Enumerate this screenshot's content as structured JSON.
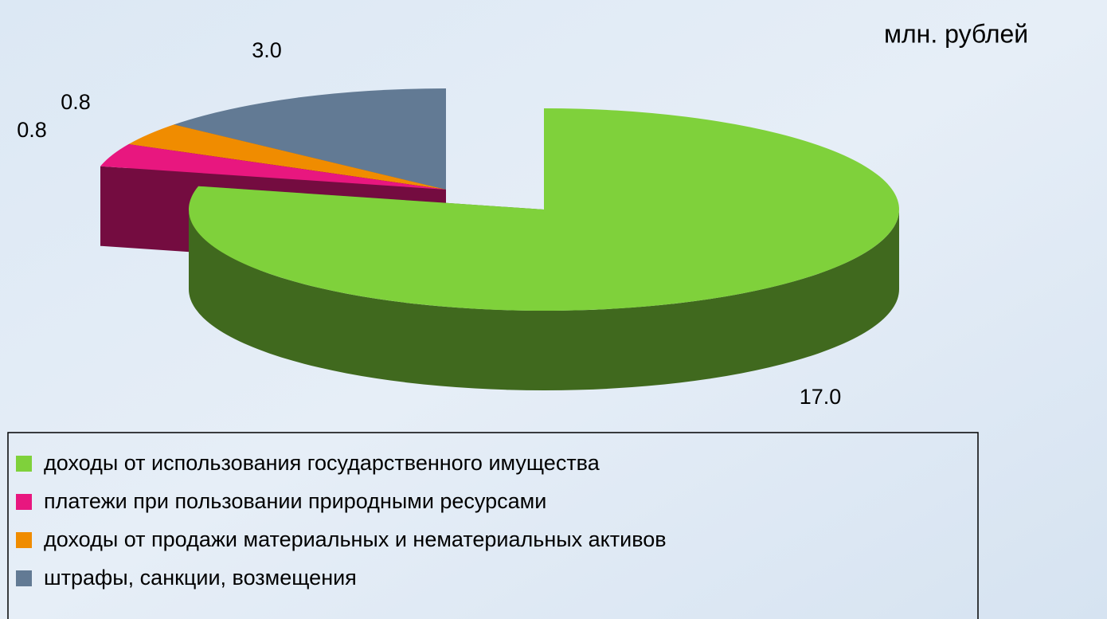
{
  "chart_data": {
    "type": "pie3d",
    "unit_label": "млн. рублей",
    "categories": [
      "доходы от использования государственного имущества",
      "платежи при пользовании природными ресурсами",
      "доходы от продажи материальных и нематериальных активов",
      "штрафы, санкции, возмещения"
    ],
    "values": [
      17.0,
      0.8,
      0.8,
      3.0
    ],
    "value_labels": [
      "17.0",
      "0.8",
      "0.8",
      "3.0"
    ],
    "colors": [
      "#7fd13b",
      "#e8177f",
      "#f08c00",
      "#627a94"
    ]
  }
}
